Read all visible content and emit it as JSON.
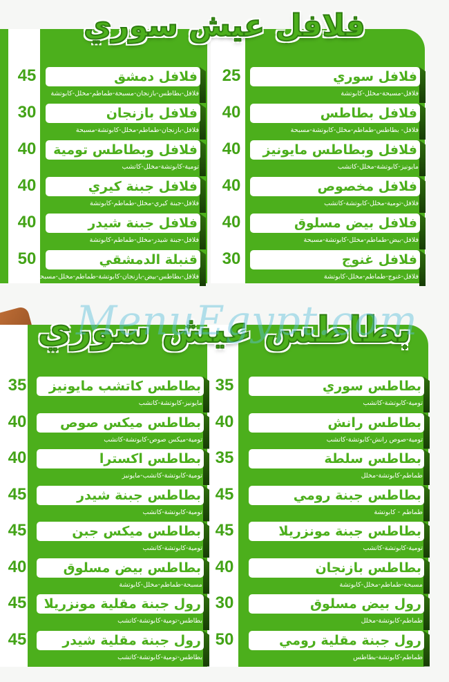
{
  "sections": [
    {
      "title": "فلافل عيش سوري",
      "columns": [
        {
          "items": [
            {
              "name": "فلافل سوري",
              "desc": "فلافل-مسبحة-مخلل-كابوتشة",
              "price": "25"
            },
            {
              "name": "فلافل بطاطس",
              "desc": "فلافل- بطاطس-طماطم-مخلل-كابوتشة-مسبحة",
              "price": "40"
            },
            {
              "name": "فلافل وبطاطس مايونيز",
              "desc": "مايونيز-كابوتشة-مخلل-كاتشب",
              "price": "40"
            },
            {
              "name": "فلافل مخصوص",
              "desc": "فلافل-تومية-مخلل-كابوتشة-كاتشب",
              "price": "40"
            },
            {
              "name": "فلافل بيض مسلوق",
              "desc": "فلافل-بيض-طماطم-مخلل-كابوتشة-مسبحة",
              "price": "40"
            },
            {
              "name": "فلافل غنوج",
              "desc": "فلافل-غنوج-طماطم-مخلل-كابوتشة",
              "price": "30"
            }
          ]
        },
        {
          "items": [
            {
              "name": "فلافل دمشق",
              "desc": "فلافل-بطاطس-بازنجان-مسبحة-طماطم-مخلل-كابوتشة",
              "price": "45"
            },
            {
              "name": "فلافل بازنجان",
              "desc": "فلافل-بازنجان-طماطم-مخلل-كابوتشة-مسبحة",
              "price": "30"
            },
            {
              "name": "فلافل وبطاطس تومية",
              "desc": "تومية-كابوتشة-مخلل-كاتشب",
              "price": "40"
            },
            {
              "name": "فلافل جبنة كيري",
              "desc": "فلافل-جبنة كيري-مخلل-طماطم-كابوتشة",
              "price": "40"
            },
            {
              "name": "فلافل جبنة شيدر",
              "desc": "فلافل-جبنة شيدر-مخلل-طماطم-كابوتشة",
              "price": "40"
            },
            {
              "name": "قنبلة الدمشقي",
              "desc": "فلافل-بطاطس-بيض-بازنجان-كابوتشة-طماطم-مخلل-مسبحة",
              "price": "50"
            }
          ]
        }
      ]
    },
    {
      "title": "بطاطس عيش سوري",
      "columns": [
        {
          "items": [
            {
              "name": "بطاطس سوري",
              "desc": "تومية-كابوتشة-كاتشب",
              "price": "35"
            },
            {
              "name": "بطاطس رانش",
              "desc": "تومية-صوص رانش-كابوتشة-كاتشب",
              "price": "40"
            },
            {
              "name": "بطاطس سلطة",
              "desc": "طماطم-كابوتشة-مخلل",
              "price": "35"
            },
            {
              "name": "بطاطس جبنة رومي",
              "desc": "طماطم - كابوتشة",
              "price": "45"
            },
            {
              "name": "بطاطس جبنة مونزريلا",
              "desc": "تومية-كابوتشة-كاتشب",
              "price": "45"
            },
            {
              "name": "بطاطس بازنجان",
              "desc": "مسبحة-طماطم-مخلل-كابوتشة",
              "price": "40"
            },
            {
              "name": "رول بيض مسلوق",
              "desc": "طماطم-كابوتشة-مخلل",
              "price": "30"
            },
            {
              "name": "رول جبنة مقلية رومي",
              "desc": "طماطم-كابوتشة-بطاطس",
              "price": "50"
            }
          ]
        },
        {
          "items": [
            {
              "name": "بطاطس كاتشب مايونيز",
              "desc": "مايونيز-كابوتشة-كاتشب",
              "price": "35"
            },
            {
              "name": "بطاطس ميكس صوص",
              "desc": "تومية-ميكس صوص-كابوتشة-كاتشب",
              "price": "40"
            },
            {
              "name": "بطاطس اكسترا",
              "desc": "تومية-كابوتشة-كاتشب-مايونيز",
              "price": "40"
            },
            {
              "name": "بطاطس جبنة شيدر",
              "desc": "تومية-كابوتشة-كاتشب",
              "price": "45"
            },
            {
              "name": "بطاطس ميكس جبن",
              "desc": "تومية-كابوتشة-كاتشب",
              "price": "45"
            },
            {
              "name": "بطاطس بيض مسلوق",
              "desc": "مسبحة-طماطم-مخلل-كابوتشة",
              "price": "40"
            },
            {
              "name": "رول جبنة مقلية مونزريلا",
              "desc": "بطاطس-تومية-كابوتشة-كاتشب",
              "price": "45"
            },
            {
              "name": "رول جبنة مقلية شيدر",
              "desc": "بطاطس-تومية-كابوتشة-كاتشب",
              "price": "45"
            }
          ]
        }
      ]
    }
  ],
  "watermark": "MenuEgypt.com",
  "colors": {
    "brand_green": "#4caf1c",
    "dark_green": "#2f6e0e",
    "price_green": "#43a317"
  }
}
